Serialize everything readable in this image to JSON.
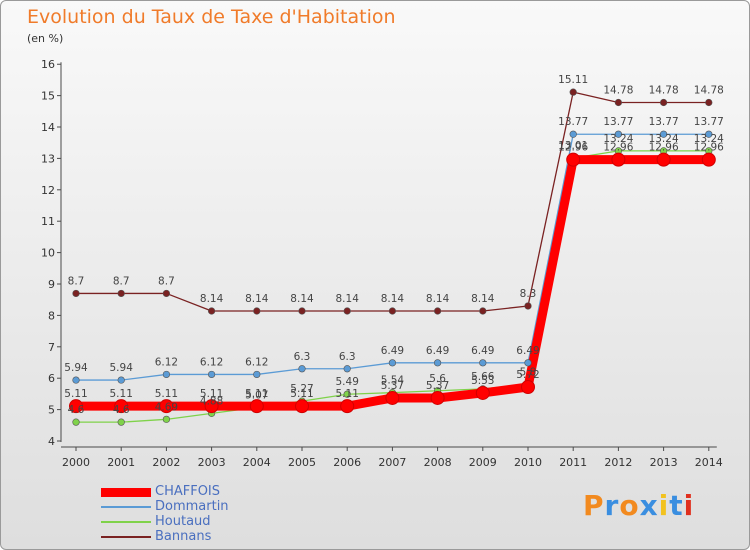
{
  "header": {
    "title": "Evolution du Taux de Taxe d'Habitation",
    "unit": "(en %)"
  },
  "brand": {
    "logo_text": "Proxiti",
    "logo_colors": [
      "#f28a1f",
      "#3a8ee0",
      "#f28a1f",
      "#3a8ee0",
      "#f2c21f",
      "#3a8ee0",
      "#e0301e"
    ]
  },
  "chart_data": {
    "type": "line",
    "title": "Evolution du Taux de Taxe d'Habitation",
    "ylabel": "(en %)",
    "xlabel": "",
    "ylim": [
      4,
      16
    ],
    "yticks": [
      4,
      5,
      6,
      7,
      8,
      9,
      10,
      11,
      12,
      13,
      14,
      15,
      16
    ],
    "x": [
      "2000",
      "2001",
      "2002",
      "2003",
      "2004",
      "2005",
      "2006",
      "2007",
      "2008",
      "2009",
      "2010",
      "2011",
      "2012",
      "2013",
      "2014"
    ],
    "grid": false,
    "legend_position": "bottom-left",
    "series": [
      {
        "name": "CHAFFOIS",
        "color": "#ff0000",
        "values": [
          5.11,
          5.11,
          5.11,
          5.11,
          5.11,
          5.11,
          5.11,
          5.37,
          5.37,
          5.53,
          5.72,
          12.96,
          12.96,
          12.96,
          12.96
        ],
        "labels": [
          "5.11",
          "5.11",
          "5.11",
          "5.11",
          "5.11",
          "5.11",
          "5.11",
          "5.37",
          "5.37",
          "5.53",
          "5.72",
          "12.96",
          "12.96",
          "12.96",
          "12.96"
        ]
      },
      {
        "name": "Dommartin",
        "color": "#5b9bd5",
        "values": [
          5.94,
          5.94,
          6.12,
          6.12,
          6.12,
          6.3,
          6.3,
          6.49,
          6.49,
          6.49,
          6.49,
          13.77,
          13.77,
          13.77,
          13.77
        ],
        "labels": [
          "5.94",
          "5.94",
          "6.12",
          "6.12",
          "6.12",
          "6.3",
          "6.3",
          "6.49",
          "6.49",
          "6.49",
          "6.49",
          "13.77",
          "13.77",
          "13.77",
          "13.77"
        ]
      },
      {
        "name": "Houtaud",
        "color": "#7fd24a",
        "values": [
          4.6,
          4.6,
          4.69,
          4.88,
          5.07,
          5.27,
          5.49,
          5.54,
          5.6,
          5.66,
          5.8,
          13.01,
          13.24,
          13.24,
          13.24
        ],
        "labels": [
          "4.6",
          "4.6",
          "4.69",
          "4.88",
          "5.07",
          "5.27",
          "5.49",
          "5.54",
          "5.6",
          "5.66",
          "5.8",
          "13.01",
          "13.24",
          "13.24",
          "13.24"
        ]
      },
      {
        "name": "Bannans",
        "color": "#7a2222",
        "values": [
          8.7,
          8.7,
          8.7,
          8.14,
          8.14,
          8.14,
          8.14,
          8.14,
          8.14,
          8.14,
          8.3,
          15.11,
          14.78,
          14.78,
          14.78
        ],
        "labels": [
          "8.7",
          "8.7",
          "8.7",
          "8.14",
          "8.14",
          "8.14",
          "8.14",
          "8.14",
          "8.14",
          "8.14",
          "8.3",
          "15.11",
          "14.78",
          "14.78",
          "14.78"
        ]
      }
    ]
  }
}
